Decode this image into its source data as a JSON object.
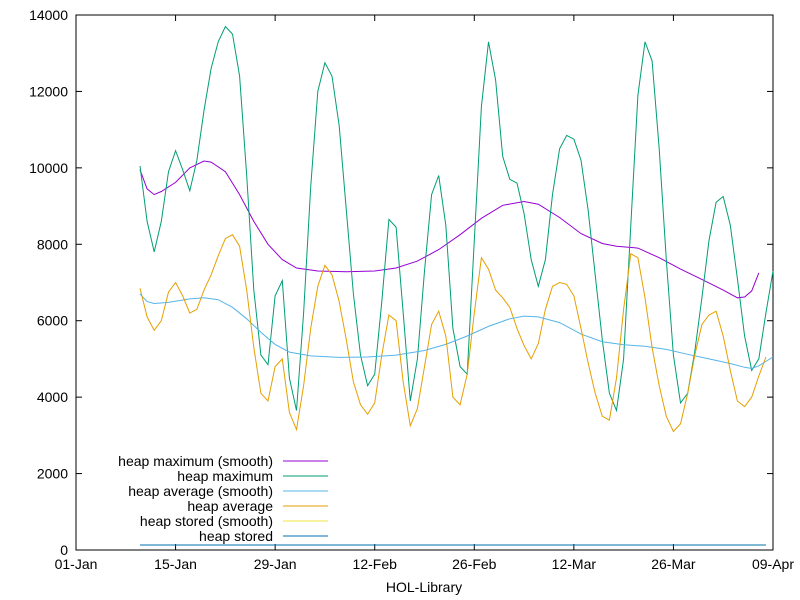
{
  "chart_data": {
    "type": "line",
    "xlabel": "HOL-Library",
    "ylabel": "",
    "x_ticks": [
      "01-Jan",
      "15-Jan",
      "29-Jan",
      "12-Feb",
      "26-Feb",
      "12-Mar",
      "26-Mar",
      "09-Apr"
    ],
    "xlim": [
      "2023-01-01",
      "2023-04-09"
    ],
    "ylim": [
      0,
      14000
    ],
    "y_ticks": [
      0,
      2000,
      4000,
      6000,
      8000,
      10000,
      12000,
      14000
    ],
    "grid": false,
    "legend_position": "bottom-left",
    "series": [
      {
        "name": "heap maximum (smooth)",
        "color": "#9400d3",
        "points": [
          [
            "2023-01-10",
            9950
          ],
          [
            "2023-01-11",
            9450
          ],
          [
            "2023-01-12",
            9300
          ],
          [
            "2023-01-13",
            9380
          ],
          [
            "2023-01-15",
            9620
          ],
          [
            "2023-01-17",
            10000
          ],
          [
            "2023-01-19",
            10180
          ],
          [
            "2023-01-20",
            10150
          ],
          [
            "2023-01-22",
            9900
          ],
          [
            "2023-01-24",
            9300
          ],
          [
            "2023-01-26",
            8600
          ],
          [
            "2023-01-28",
            8000
          ],
          [
            "2023-01-30",
            7600
          ],
          [
            "2023-02-01",
            7380
          ],
          [
            "2023-02-04",
            7300
          ],
          [
            "2023-02-08",
            7280
          ],
          [
            "2023-02-12",
            7300
          ],
          [
            "2023-02-15",
            7380
          ],
          [
            "2023-02-18",
            7560
          ],
          [
            "2023-02-21",
            7860
          ],
          [
            "2023-02-24",
            8250
          ],
          [
            "2023-02-27",
            8680
          ],
          [
            "2023-03-02",
            9020
          ],
          [
            "2023-03-05",
            9120
          ],
          [
            "2023-03-07",
            9050
          ],
          [
            "2023-03-10",
            8700
          ],
          [
            "2023-03-13",
            8280
          ],
          [
            "2023-03-16",
            8020
          ],
          [
            "2023-03-18",
            7950
          ],
          [
            "2023-03-21",
            7900
          ],
          [
            "2023-03-24",
            7650
          ],
          [
            "2023-03-27",
            7350
          ],
          [
            "2023-03-30",
            7080
          ],
          [
            "2023-04-02",
            6800
          ],
          [
            "2023-04-04",
            6600
          ],
          [
            "2023-04-05",
            6620
          ],
          [
            "2023-04-06",
            6780
          ],
          [
            "2023-04-07",
            7250
          ]
        ]
      },
      {
        "name": "heap maximum",
        "color": "#009e73",
        "points": [
          [
            "2023-01-10",
            10050
          ],
          [
            "2023-01-11",
            8600
          ],
          [
            "2023-01-12",
            7800
          ],
          [
            "2023-01-13",
            8600
          ],
          [
            "2023-01-14",
            9900
          ],
          [
            "2023-01-15",
            10450
          ],
          [
            "2023-01-16",
            9950
          ],
          [
            "2023-01-17",
            9400
          ],
          [
            "2023-01-18",
            10200
          ],
          [
            "2023-01-19",
            11500
          ],
          [
            "2023-01-20",
            12600
          ],
          [
            "2023-01-21",
            13300
          ],
          [
            "2023-01-22",
            13700
          ],
          [
            "2023-01-23",
            13500
          ],
          [
            "2023-01-24",
            12400
          ],
          [
            "2023-01-25",
            9800
          ],
          [
            "2023-01-26",
            6800
          ],
          [
            "2023-01-27",
            5100
          ],
          [
            "2023-01-28",
            4850
          ],
          [
            "2023-01-29",
            6650
          ],
          [
            "2023-01-30",
            7050
          ],
          [
            "2023-01-31",
            4500
          ],
          [
            "2023-02-01",
            3650
          ],
          [
            "2023-02-02",
            6200
          ],
          [
            "2023-02-03",
            9500
          ],
          [
            "2023-02-04",
            12000
          ],
          [
            "2023-02-05",
            12750
          ],
          [
            "2023-02-06",
            12400
          ],
          [
            "2023-02-07",
            11100
          ],
          [
            "2023-02-08",
            8900
          ],
          [
            "2023-02-09",
            6700
          ],
          [
            "2023-02-10",
            5100
          ],
          [
            "2023-02-11",
            4300
          ],
          [
            "2023-02-12",
            4600
          ],
          [
            "2023-02-13",
            6500
          ],
          [
            "2023-02-14",
            8650
          ],
          [
            "2023-02-15",
            8450
          ],
          [
            "2023-02-16",
            6200
          ],
          [
            "2023-02-17",
            3900
          ],
          [
            "2023-02-18",
            5000
          ],
          [
            "2023-02-19",
            7300
          ],
          [
            "2023-02-20",
            9300
          ],
          [
            "2023-02-21",
            9800
          ],
          [
            "2023-02-22",
            8500
          ],
          [
            "2023-02-23",
            5800
          ],
          [
            "2023-02-24",
            4800
          ],
          [
            "2023-02-25",
            4600
          ],
          [
            "2023-02-26",
            8100
          ],
          [
            "2023-02-27",
            11600
          ],
          [
            "2023-02-28",
            13300
          ],
          [
            "2023-03-01",
            12300
          ],
          [
            "2023-03-02",
            10300
          ],
          [
            "2023-03-03",
            9700
          ],
          [
            "2023-03-04",
            9600
          ],
          [
            "2023-03-05",
            8800
          ],
          [
            "2023-03-06",
            7600
          ],
          [
            "2023-03-07",
            6900
          ],
          [
            "2023-03-08",
            7600
          ],
          [
            "2023-03-09",
            9300
          ],
          [
            "2023-03-10",
            10500
          ],
          [
            "2023-03-11",
            10850
          ],
          [
            "2023-03-12",
            10750
          ],
          [
            "2023-03-13",
            10200
          ],
          [
            "2023-03-14",
            8900
          ],
          [
            "2023-03-15",
            7200
          ],
          [
            "2023-03-16",
            5500
          ],
          [
            "2023-03-17",
            4100
          ],
          [
            "2023-03-18",
            3650
          ],
          [
            "2023-03-19",
            5000
          ],
          [
            "2023-03-20",
            8500
          ],
          [
            "2023-03-21",
            11900
          ],
          [
            "2023-03-22",
            13300
          ],
          [
            "2023-03-23",
            12800
          ],
          [
            "2023-03-24",
            10500
          ],
          [
            "2023-03-25",
            7600
          ],
          [
            "2023-03-26",
            5100
          ],
          [
            "2023-03-27",
            3850
          ],
          [
            "2023-03-28",
            4100
          ],
          [
            "2023-03-29",
            5200
          ],
          [
            "2023-03-30",
            6600
          ],
          [
            "2023-03-31",
            8100
          ],
          [
            "2023-04-01",
            9100
          ],
          [
            "2023-04-02",
            9250
          ],
          [
            "2023-04-03",
            8500
          ],
          [
            "2023-04-04",
            7100
          ],
          [
            "2023-04-05",
            5600
          ],
          [
            "2023-04-06",
            4700
          ],
          [
            "2023-04-07",
            5000
          ],
          [
            "2023-04-08",
            6200
          ],
          [
            "2023-04-09",
            7300
          ]
        ]
      },
      {
        "name": "heap average (smooth)",
        "color": "#56b4e9",
        "points": [
          [
            "2023-01-10",
            6700
          ],
          [
            "2023-01-11",
            6500
          ],
          [
            "2023-01-12",
            6450
          ],
          [
            "2023-01-14",
            6480
          ],
          [
            "2023-01-17",
            6570
          ],
          [
            "2023-01-19",
            6600
          ],
          [
            "2023-01-21",
            6550
          ],
          [
            "2023-01-23",
            6350
          ],
          [
            "2023-01-25",
            6050
          ],
          [
            "2023-01-27",
            5700
          ],
          [
            "2023-01-29",
            5380
          ],
          [
            "2023-01-31",
            5180
          ],
          [
            "2023-02-03",
            5080
          ],
          [
            "2023-02-07",
            5040
          ],
          [
            "2023-02-11",
            5050
          ],
          [
            "2023-02-15",
            5100
          ],
          [
            "2023-02-19",
            5220
          ],
          [
            "2023-02-22",
            5380
          ],
          [
            "2023-02-25",
            5600
          ],
          [
            "2023-02-28",
            5850
          ],
          [
            "2023-03-03",
            6050
          ],
          [
            "2023-03-05",
            6120
          ],
          [
            "2023-03-07",
            6100
          ],
          [
            "2023-03-10",
            5950
          ],
          [
            "2023-03-13",
            5650
          ],
          [
            "2023-03-16",
            5450
          ],
          [
            "2023-03-19",
            5370
          ],
          [
            "2023-03-22",
            5330
          ],
          [
            "2023-03-25",
            5250
          ],
          [
            "2023-03-28",
            5120
          ],
          [
            "2023-03-31",
            5000
          ],
          [
            "2023-04-03",
            4880
          ],
          [
            "2023-04-05",
            4780
          ],
          [
            "2023-04-06",
            4750
          ],
          [
            "2023-04-07",
            4820
          ],
          [
            "2023-04-09",
            5050
          ]
        ]
      },
      {
        "name": "heap average",
        "color": "#e69f00",
        "points": [
          [
            "2023-01-10",
            6850
          ],
          [
            "2023-01-11",
            6100
          ],
          [
            "2023-01-12",
            5750
          ],
          [
            "2023-01-13",
            6000
          ],
          [
            "2023-01-14",
            6750
          ],
          [
            "2023-01-15",
            7000
          ],
          [
            "2023-01-16",
            6650
          ],
          [
            "2023-01-17",
            6200
          ],
          [
            "2023-01-18",
            6300
          ],
          [
            "2023-01-19",
            6800
          ],
          [
            "2023-01-20",
            7200
          ],
          [
            "2023-01-21",
            7700
          ],
          [
            "2023-01-22",
            8150
          ],
          [
            "2023-01-23",
            8250
          ],
          [
            "2023-01-24",
            7950
          ],
          [
            "2023-01-25",
            6800
          ],
          [
            "2023-01-26",
            5300
          ],
          [
            "2023-01-27",
            4100
          ],
          [
            "2023-01-28",
            3900
          ],
          [
            "2023-01-29",
            4800
          ],
          [
            "2023-01-30",
            5000
          ],
          [
            "2023-01-31",
            3600
          ],
          [
            "2023-02-01",
            3150
          ],
          [
            "2023-02-02",
            4300
          ],
          [
            "2023-02-03",
            5800
          ],
          [
            "2023-02-04",
            6900
          ],
          [
            "2023-02-05",
            7450
          ],
          [
            "2023-02-06",
            7200
          ],
          [
            "2023-02-07",
            6500
          ],
          [
            "2023-02-08",
            5500
          ],
          [
            "2023-02-09",
            4400
          ],
          [
            "2023-02-10",
            3800
          ],
          [
            "2023-02-11",
            3550
          ],
          [
            "2023-02-12",
            3850
          ],
          [
            "2023-02-13",
            5100
          ],
          [
            "2023-02-14",
            6150
          ],
          [
            "2023-02-15",
            6000
          ],
          [
            "2023-02-16",
            4400
          ],
          [
            "2023-02-17",
            3250
          ],
          [
            "2023-02-18",
            3700
          ],
          [
            "2023-02-19",
            4800
          ],
          [
            "2023-02-20",
            5900
          ],
          [
            "2023-02-21",
            6250
          ],
          [
            "2023-02-22",
            5600
          ],
          [
            "2023-02-23",
            4000
          ],
          [
            "2023-02-24",
            3800
          ],
          [
            "2023-02-25",
            4600
          ],
          [
            "2023-02-26",
            6200
          ],
          [
            "2023-02-27",
            7650
          ],
          [
            "2023-02-28",
            7350
          ],
          [
            "2023-03-01",
            6800
          ],
          [
            "2023-03-02",
            6600
          ],
          [
            "2023-03-03",
            6350
          ],
          [
            "2023-03-04",
            5800
          ],
          [
            "2023-03-05",
            5350
          ],
          [
            "2023-03-06",
            5000
          ],
          [
            "2023-03-07",
            5400
          ],
          [
            "2023-03-08",
            6300
          ],
          [
            "2023-03-09",
            6900
          ],
          [
            "2023-03-10",
            7000
          ],
          [
            "2023-03-11",
            6950
          ],
          [
            "2023-03-12",
            6650
          ],
          [
            "2023-03-13",
            5800
          ],
          [
            "2023-03-14",
            4900
          ],
          [
            "2023-03-15",
            4100
          ],
          [
            "2023-03-16",
            3500
          ],
          [
            "2023-03-17",
            3400
          ],
          [
            "2023-03-18",
            4500
          ],
          [
            "2023-03-19",
            6300
          ],
          [
            "2023-03-20",
            7750
          ],
          [
            "2023-03-21",
            7650
          ],
          [
            "2023-03-22",
            6600
          ],
          [
            "2023-03-23",
            5300
          ],
          [
            "2023-03-24",
            4300
          ],
          [
            "2023-03-25",
            3500
          ],
          [
            "2023-03-26",
            3100
          ],
          [
            "2023-03-27",
            3300
          ],
          [
            "2023-03-28",
            4100
          ],
          [
            "2023-03-29",
            5100
          ],
          [
            "2023-03-30",
            5900
          ],
          [
            "2023-03-31",
            6150
          ],
          [
            "2023-04-01",
            6250
          ],
          [
            "2023-04-02",
            5600
          ],
          [
            "2023-04-03",
            4700
          ],
          [
            "2023-04-04",
            3900
          ],
          [
            "2023-04-05",
            3750
          ],
          [
            "2023-04-06",
            4000
          ],
          [
            "2023-04-07",
            4550
          ],
          [
            "2023-04-08",
            5050
          ]
        ]
      },
      {
        "name": "heap stored (smooth)",
        "color": "#f0e442",
        "points": [
          [
            "2023-01-10",
            130
          ],
          [
            "2023-04-08",
            130
          ]
        ]
      },
      {
        "name": "heap stored",
        "color": "#0072b2",
        "points": [
          [
            "2023-01-10",
            130
          ],
          [
            "2023-04-08",
            130
          ]
        ]
      }
    ]
  }
}
